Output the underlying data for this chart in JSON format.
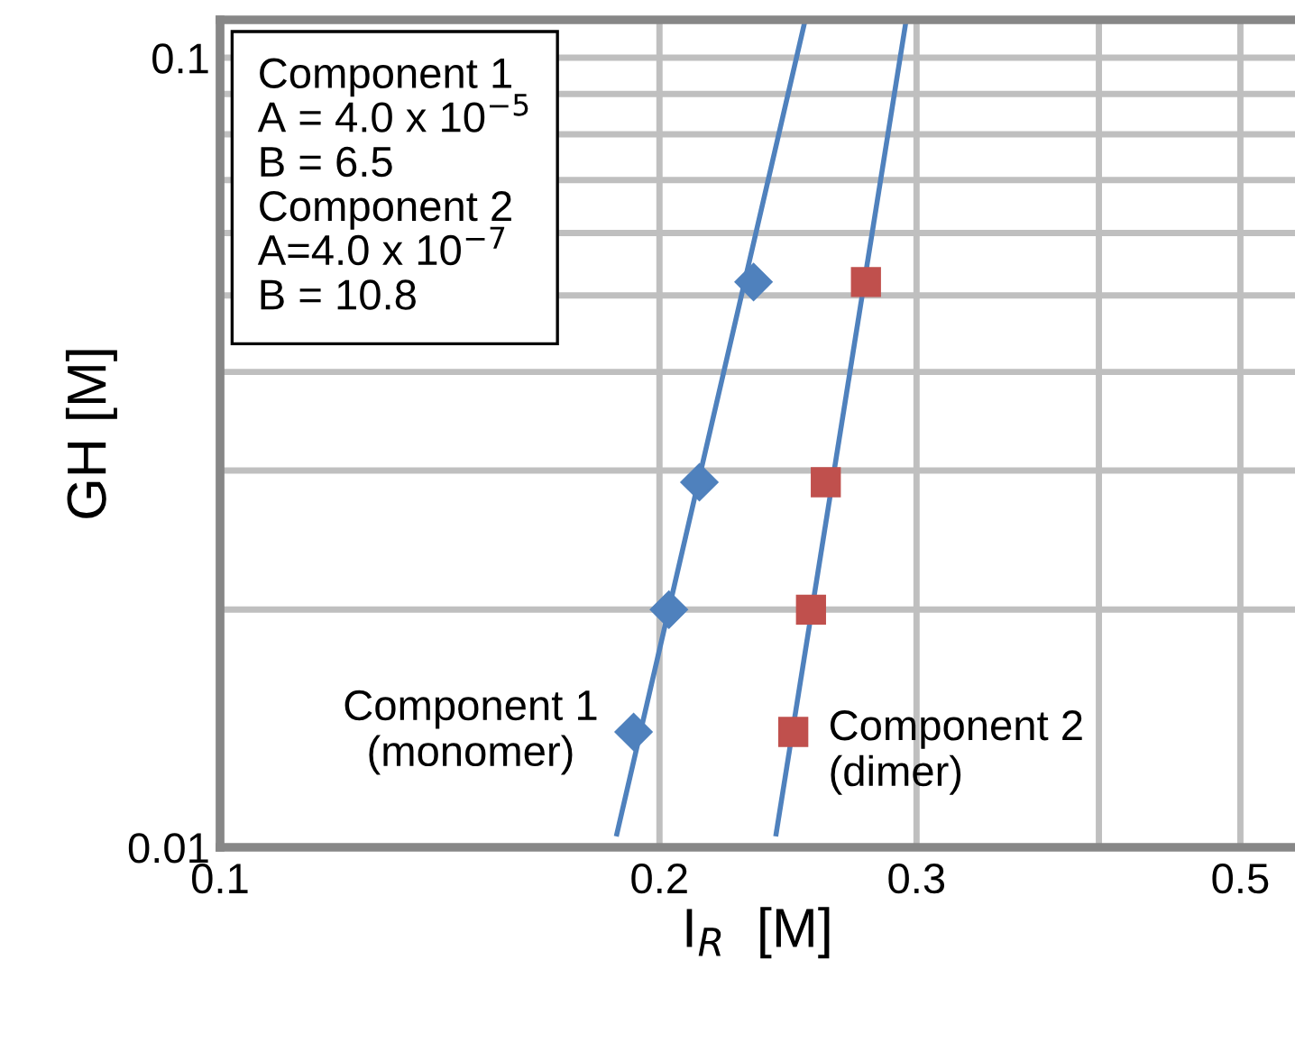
{
  "chart_data": {
    "type": "scatter",
    "xlabel": "I$_{R}$  [M]",
    "ylabel": "GH [M]",
    "log": "xy",
    "grid": true,
    "legend": false,
    "xlim": [
      0.1,
      0.545
    ],
    "ylim": [
      0.01,
      0.1117
    ],
    "xticks": [
      0.1,
      0.2,
      0.3,
      {
        "value": 0.4,
        "label": null
      },
      0.5
    ],
    "yticks": [
      0.01,
      {
        "value": 0.02,
        "label": null
      },
      {
        "value": 0.03,
        "label": null
      },
      {
        "value": 0.04,
        "label": null
      },
      {
        "value": 0.05,
        "label": null
      },
      {
        "value": 0.06,
        "label": null
      },
      {
        "value": 0.07,
        "label": null
      },
      {
        "value": 0.08,
        "label": null
      },
      {
        "value": 0.09,
        "label": null
      },
      0.1
    ],
    "series": [
      {
        "type": "line",
        "color": "#4f81bd",
        "x": [
          0.187,
          0.2515
        ],
        "values": [
          0.0104,
          0.111
        ],
        "marker": "none",
        "line_style": "solid"
      },
      {
        "type": "line",
        "color": "#4f81bd",
        "x": [
          0.2404,
          0.295
        ],
        "values": [
          0.0104,
          0.111
        ],
        "marker": "none",
        "line_style": "solid"
      },
      {
        "name": "Component 1\n(monomer)",
        "color": "#4f81bd",
        "marker": "diamond",
        "x": [
          0.232,
          0.213,
          0.203,
          0.192
        ],
        "values": [
          0.052,
          0.029,
          0.02,
          0.014
        ]
      },
      {
        "name": "Component 2\n(dimer)",
        "color": "#c0504d",
        "marker": "square",
        "x": [
          0.277,
          0.26,
          0.254,
          0.247
        ],
        "values": [
          0.052,
          0.029,
          0.02,
          0.014
        ]
      }
    ],
    "annotations": [
      "Component 1\nA = 4.0 x 10$^{−5}$\nB = 6.5\nComponent 2\nA=4.0 x 10$^{−7}$\nB = 10.8"
    ]
  }
}
